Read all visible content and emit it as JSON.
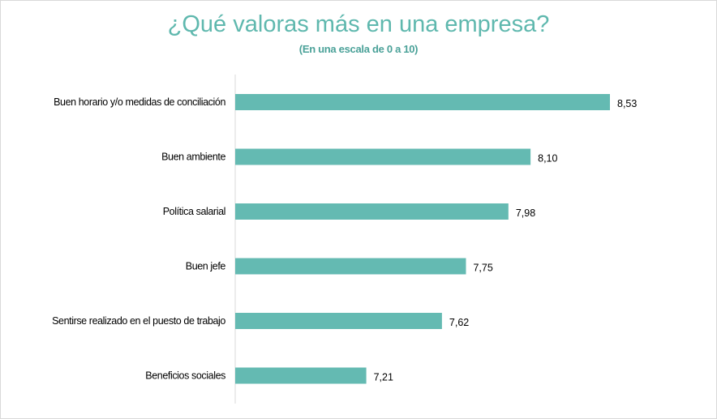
{
  "chart_data": {
    "type": "bar",
    "orientation": "horizontal",
    "title": "¿Qué valoras más en una empresa?",
    "subtitle": "(En una escala de 0 a 10)",
    "categories": [
      "Buen horario y/o medidas de conciliación",
      "Buen ambiente",
      "Política salarial",
      "Buen jefe",
      "Sentirse realizado en el puesto de trabajo",
      "Beneficios sociales"
    ],
    "values": [
      8.53,
      8.1,
      7.98,
      7.75,
      7.62,
      7.21
    ],
    "value_labels": [
      "8,53",
      "8,10",
      "7,98",
      "7,75",
      "7,62",
      "7,21"
    ],
    "xlim": [
      6.5,
      8.9
    ],
    "grid": false,
    "legend": "none",
    "bar_color": "#64bab2",
    "title_color": "#5fb8ae"
  }
}
